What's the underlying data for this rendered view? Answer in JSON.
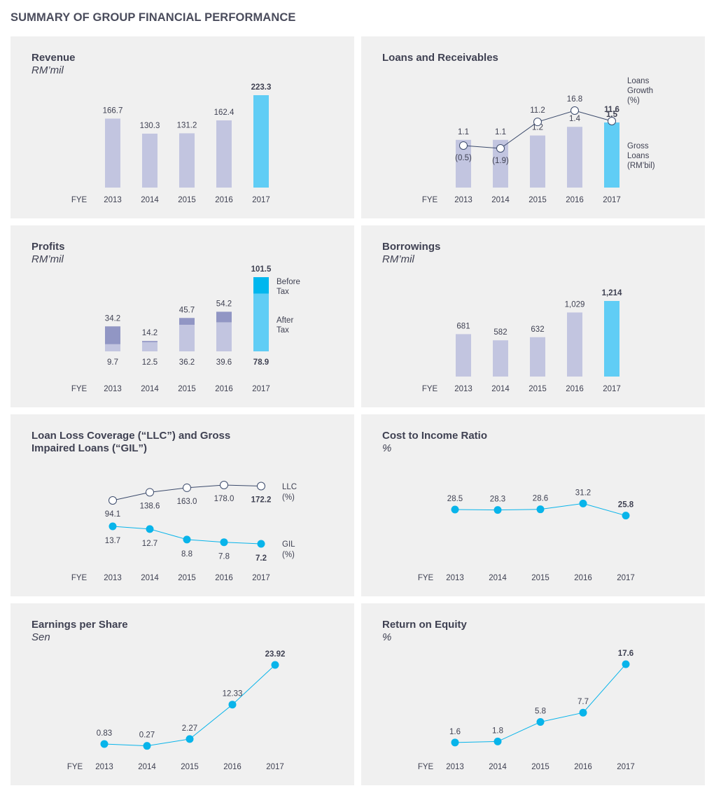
{
  "page_title": "SUMMARY OF GROUP FINANCIAL PERFORMANCE",
  "colors": {
    "bar_past": "#c2c5e0",
    "bar_current": "#60cdf5",
    "before_tax_past": "#9196c4",
    "before_tax_current": "#00b7ee",
    "line_blue": "#08b4ea",
    "line_navy": "#3b4a6b",
    "panel_bg": "#f0f0f0"
  },
  "panels": [
    {
      "id": "revenue",
      "title": "Revenue",
      "unit": "RM’mil",
      "fye_label": "FYE"
    },
    {
      "id": "loans",
      "title": "Loans and Receivables",
      "unit": "",
      "fye_label": "FYE"
    },
    {
      "id": "profits",
      "title": "Profits",
      "unit": "RM’mil",
      "fye_label": "FYE"
    },
    {
      "id": "borrowings",
      "title": "Borrowings",
      "unit": "RM’mil",
      "fye_label": "FYE"
    },
    {
      "id": "llc",
      "title": "Loan Loss Coverage (“LLC”) and Gross Impaired Loans (“GIL”)",
      "unit": "",
      "fye_label": "FYE"
    },
    {
      "id": "cir",
      "title": "Cost to Income Ratio",
      "unit": "%",
      "fye_label": "FYE"
    },
    {
      "id": "eps",
      "title": "Earnings per Share",
      "unit": "Sen",
      "fye_label": "FYE"
    },
    {
      "id": "roe",
      "title": "Return on Equity",
      "unit": "%",
      "fye_label": "FYE"
    }
  ],
  "chart_data": [
    {
      "id": "revenue",
      "type": "bar",
      "categories": [
        "2013",
        "2014",
        "2015",
        "2016",
        "2017"
      ],
      "values": [
        166.7,
        130.3,
        131.2,
        162.4,
        223.3
      ],
      "value_labels": [
        "166.7",
        "130.3",
        "131.2",
        "162.4",
        "223.3"
      ],
      "title": "Revenue",
      "ylabel": "RM’mil"
    },
    {
      "id": "loans",
      "type": "bar",
      "categories": [
        "2013",
        "2014",
        "2015",
        "2016",
        "2017"
      ],
      "series": [
        {
          "name": "Gross Loans (RM’bil)",
          "kind": "bar",
          "values": [
            1.1,
            1.1,
            1.2,
            1.4,
            1.5
          ],
          "value_labels": [
            "1.1",
            "1.1",
            "1.2",
            "1.4",
            "1.5"
          ]
        },
        {
          "name": "Loans Growth (%)",
          "kind": "line",
          "values": [
            -0.5,
            -1.9,
            11.2,
            16.8,
            11.6
          ],
          "value_labels": [
            "(0.5)",
            "(1.9)",
            "11.2",
            "16.8",
            "11.6"
          ]
        }
      ],
      "legend": [
        "Loans",
        "Growth",
        "(%)",
        "Gross",
        "Loans",
        "(RM’bil)"
      ],
      "title": "Loans and Receivables"
    },
    {
      "id": "profits",
      "type": "bar",
      "categories": [
        "2013",
        "2014",
        "2015",
        "2016",
        "2017"
      ],
      "series": [
        {
          "name": "Before Tax",
          "values": [
            34.2,
            14.2,
            45.7,
            54.2,
            101.5
          ],
          "value_labels": [
            "34.2",
            "14.2",
            "45.7",
            "54.2",
            "101.5"
          ]
        },
        {
          "name": "After Tax",
          "values": [
            9.7,
            12.5,
            36.2,
            39.6,
            78.9
          ],
          "value_labels": [
            "9.7",
            "12.5",
            "36.2",
            "39.6",
            "78.9"
          ]
        }
      ],
      "legend": [
        "Before",
        "Tax",
        "After",
        "Tax"
      ],
      "title": "Profits",
      "ylabel": "RM’mil"
    },
    {
      "id": "borrowings",
      "type": "bar",
      "categories": [
        "2013",
        "2014",
        "2015",
        "2016",
        "2017"
      ],
      "values": [
        681,
        582,
        632,
        1029,
        1214
      ],
      "value_labels": [
        "681",
        "582",
        "632",
        "1,029",
        "1,214"
      ],
      "title": "Borrowings",
      "ylabel": "RM’mil"
    },
    {
      "id": "llc",
      "type": "line",
      "categories": [
        "2013",
        "2014",
        "2015",
        "2016",
        "2017"
      ],
      "series": [
        {
          "name": "LLC (%)",
          "values": [
            94.1,
            138.6,
            163.0,
            178.0,
            172.2
          ],
          "value_labels": [
            "94.1",
            "138.6",
            "163.0",
            "178.0",
            "172.2"
          ]
        },
        {
          "name": "GIL (%)",
          "values": [
            13.7,
            12.7,
            8.8,
            7.8,
            7.2
          ],
          "value_labels": [
            "13.7",
            "12.7",
            "8.8",
            "7.8",
            "7.2"
          ]
        }
      ],
      "legend": [
        "LLC",
        "(%)",
        "GIL",
        "(%)"
      ],
      "title": "Loan Loss Coverage (“LLC”) and Gross Impaired Loans (“GIL”)"
    },
    {
      "id": "cir",
      "type": "line",
      "categories": [
        "2013",
        "2014",
        "2015",
        "2016",
        "2017"
      ],
      "values": [
        28.5,
        28.3,
        28.6,
        31.2,
        25.8
      ],
      "value_labels": [
        "28.5",
        "28.3",
        "28.6",
        "31.2",
        "25.8"
      ],
      "title": "Cost to Income Ratio",
      "ylabel": "%"
    },
    {
      "id": "eps",
      "type": "line",
      "categories": [
        "2013",
        "2014",
        "2015",
        "2016",
        "2017"
      ],
      "values": [
        0.83,
        0.27,
        2.27,
        12.33,
        23.92
      ],
      "value_labels": [
        "0.83",
        "0.27",
        "2.27",
        "12.33",
        "23.92"
      ],
      "title": "Earnings per Share",
      "ylabel": "Sen"
    },
    {
      "id": "roe",
      "type": "line",
      "categories": [
        "2013",
        "2014",
        "2015",
        "2016",
        "2017"
      ],
      "values": [
        1.6,
        1.8,
        5.8,
        7.7,
        17.6
      ],
      "value_labels": [
        "1.6",
        "1.8",
        "5.8",
        "7.7",
        "17.6"
      ],
      "title": "Return on Equity",
      "ylabel": "%"
    }
  ]
}
